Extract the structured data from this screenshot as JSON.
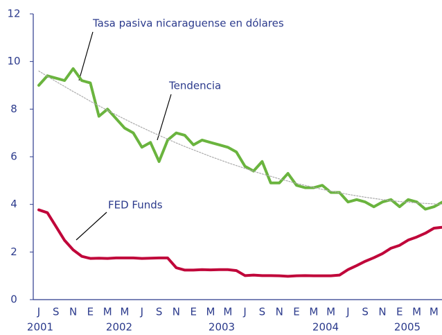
{
  "chart_data": {
    "type": "line",
    "categories": [
      "J",
      null,
      "S",
      null,
      "N",
      null,
      "E",
      null,
      "M",
      null,
      "M",
      null,
      "J",
      null,
      "S",
      null,
      "N",
      null,
      "E",
      null,
      "M",
      null,
      "M",
      null,
      "J",
      null,
      "S",
      null,
      "N",
      null,
      "E",
      null,
      "M",
      null,
      "M",
      null,
      "J",
      null,
      "S",
      null,
      "N",
      null,
      "E",
      null,
      "M",
      null,
      "M",
      null
    ],
    "year_labels": [
      "2001",
      "2002",
      "2003",
      "2004",
      "2005"
    ],
    "series": [
      {
        "name": "Tasa pasiva nicaraguense en dólares",
        "color": "#6ab43e",
        "style": "solid",
        "values": [
          9.0,
          9.4,
          9.3,
          9.2,
          9.7,
          9.2,
          9.1,
          7.7,
          8.0,
          7.6,
          7.2,
          7.0,
          6.4,
          6.6,
          5.8,
          6.7,
          7.0,
          6.9,
          6.5,
          6.7,
          6.6,
          6.5,
          6.4,
          6.2,
          5.6,
          5.4,
          5.8,
          4.9,
          4.9,
          5.3,
          4.8,
          4.7,
          4.7,
          4.8,
          4.5,
          4.5,
          4.1,
          4.2,
          4.1,
          3.9,
          4.1,
          4.2,
          3.9,
          4.2,
          4.1,
          3.8,
          3.9,
          4.1
        ]
      },
      {
        "name": "Tendencia",
        "color": "#aaaaaa",
        "style": "dotted",
        "values": [
          9.6,
          9.38,
          9.16,
          8.95,
          8.74,
          8.54,
          8.33,
          8.14,
          7.95,
          7.76,
          7.58,
          7.4,
          7.23,
          7.06,
          6.9,
          6.74,
          6.58,
          6.43,
          6.29,
          6.15,
          6.01,
          5.88,
          5.75,
          5.63,
          5.51,
          5.39,
          5.28,
          5.18,
          5.07,
          4.98,
          4.88,
          4.8,
          4.71,
          4.63,
          4.56,
          4.49,
          4.42,
          4.36,
          4.3,
          4.25,
          4.2,
          4.16,
          4.12,
          4.09,
          4.06,
          4.04,
          4.02,
          4.0
        ]
      },
      {
        "name": "FED Funds",
        "color": "#c0063a",
        "style": "solid",
        "values": [
          3.77,
          3.65,
          3.07,
          2.49,
          2.09,
          1.82,
          1.73,
          1.74,
          1.73,
          1.75,
          1.75,
          1.75,
          1.73,
          1.74,
          1.75,
          1.75,
          1.34,
          1.24,
          1.24,
          1.26,
          1.25,
          1.26,
          1.26,
          1.22,
          1.01,
          1.03,
          1.01,
          1.01,
          1.0,
          0.98,
          1.0,
          1.01,
          1.0,
          1.0,
          1.0,
          1.03,
          1.26,
          1.43,
          1.61,
          1.76,
          1.93,
          2.16,
          2.28,
          2.5,
          2.63,
          2.79,
          3.0,
          3.04
        ]
      }
    ],
    "ylim": [
      0,
      12
    ],
    "yticks": [
      0,
      2,
      4,
      6,
      8,
      10,
      12
    ]
  }
}
